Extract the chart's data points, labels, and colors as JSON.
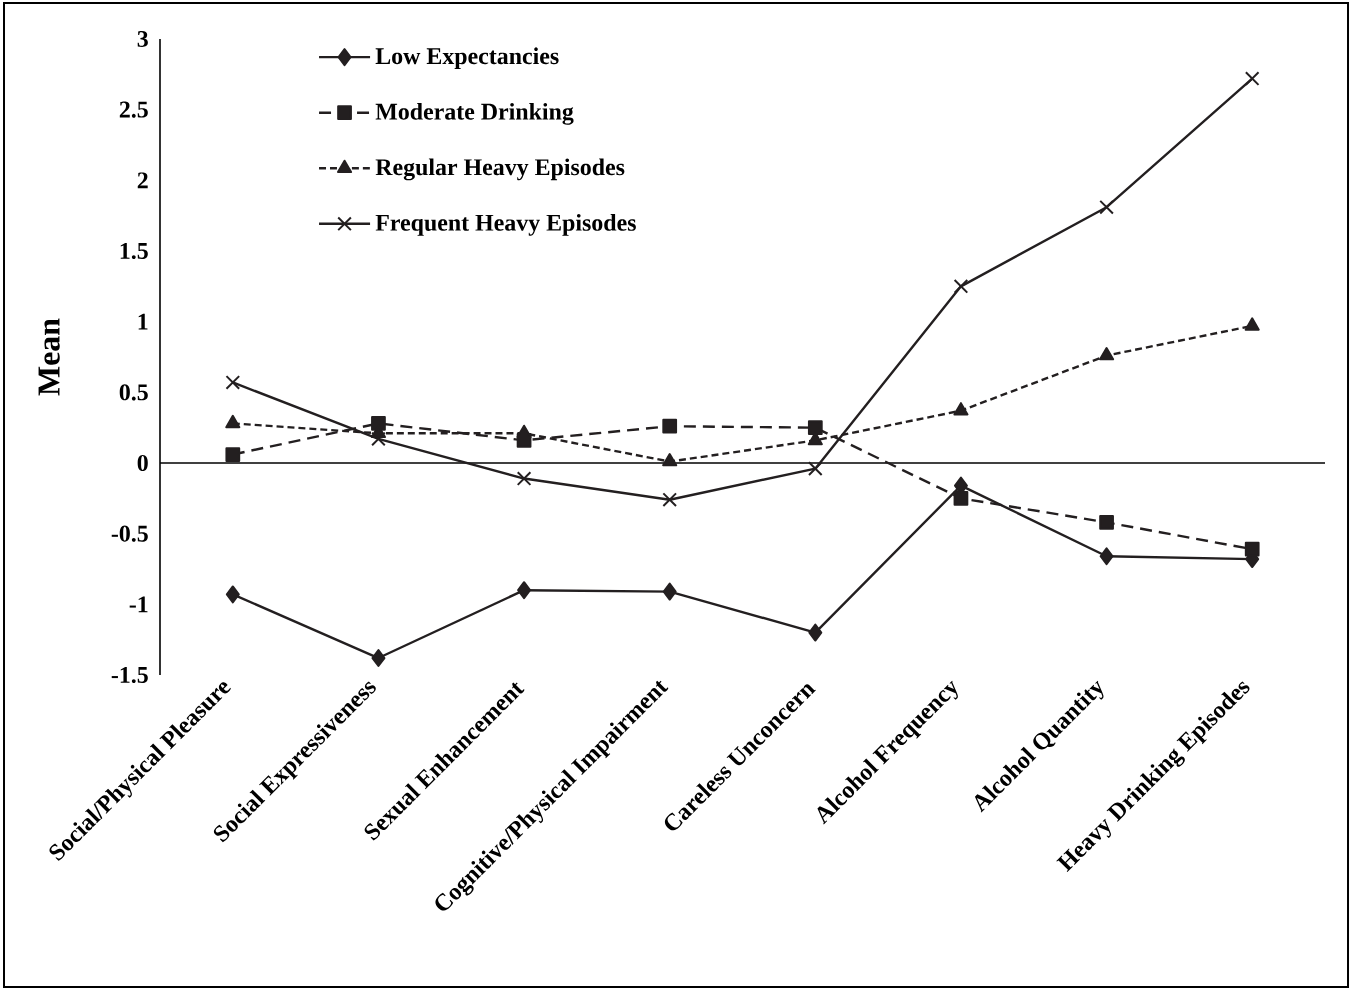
{
  "chart_data": {
    "type": "line",
    "ylabel": "Mean",
    "categories": [
      "Social/Physical Pleasure",
      "Social Expressiveness",
      "Sexual Enhancement",
      "Cognitive/Physical Impairment",
      "Careless Unconcern",
      "Alcohol Frequency",
      "Alcohol Quantity",
      "Heavy Drinking Episodes"
    ],
    "series": [
      {
        "name": "Low Expectancies",
        "color": "#231f20",
        "marker": "diamond",
        "line_style": "solid",
        "values": [
          -0.93,
          -1.38,
          -0.9,
          -0.91,
          -1.2,
          -0.16,
          -0.66,
          -0.68
        ]
      },
      {
        "name": "Moderate Drinking",
        "color": "#231f20",
        "marker": "square",
        "line_style": "dashed",
        "values": [
          0.06,
          0.28,
          0.16,
          0.26,
          0.25,
          -0.25,
          -0.42,
          -0.61
        ]
      },
      {
        "name": "Regular Heavy Episodes",
        "color": "#231f20",
        "marker": "triangle",
        "line_style": "dotted",
        "values": [
          0.28,
          0.21,
          0.21,
          0.01,
          0.16,
          0.37,
          0.76,
          0.97
        ]
      },
      {
        "name": "Frequent Heavy Episodes",
        "color": "#231f20",
        "marker": "cross",
        "line_style": "solid",
        "values": [
          0.57,
          0.17,
          -0.11,
          -0.26,
          -0.04,
          1.25,
          1.81,
          2.72
        ]
      }
    ],
    "ylim": [
      -1.5,
      3
    ],
    "yticks": [
      -1.5,
      -1,
      -0.5,
      0,
      0.5,
      1,
      1.5,
      2,
      2.5,
      3
    ],
    "legend": "top left"
  }
}
